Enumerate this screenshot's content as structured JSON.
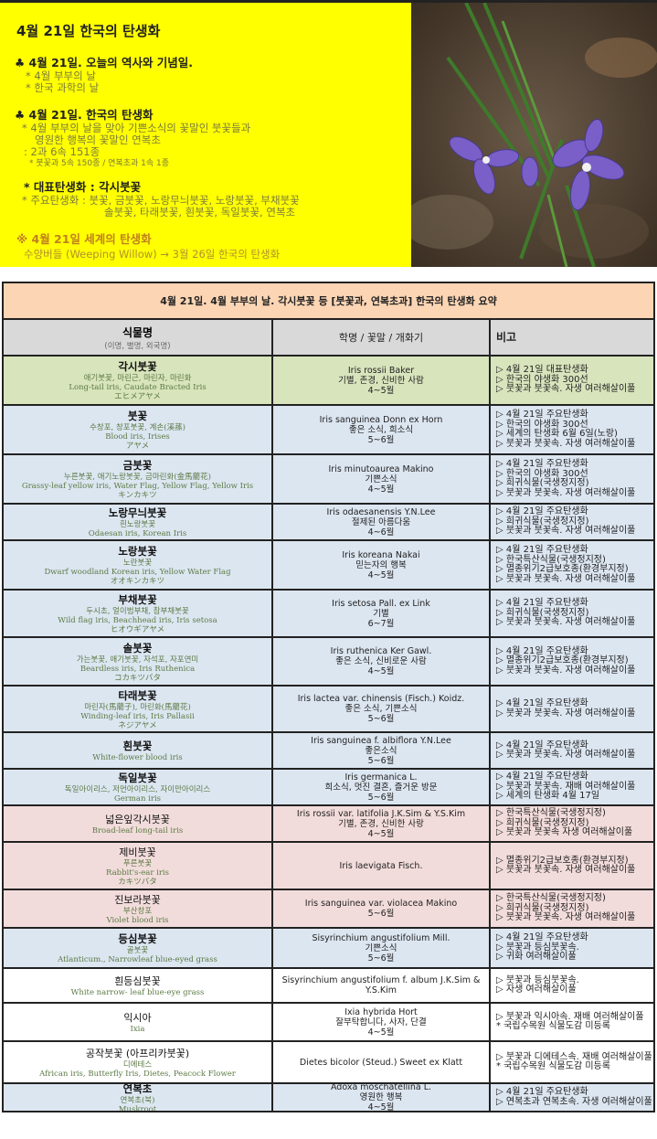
{
  "intro": {
    "title": "4월 21일 한국의 탄생화",
    "history_heading": "♣ 4월 21일. 오늘의 역사와 기념일.",
    "history_items": [
      "* 4월 부부의 날",
      "* 한국 과학의 날"
    ],
    "birth_heading": "♣ 4월 21일. 한국의 탄생화",
    "birth_lines": [
      "* 4월 부부의 날을 맞아 기쁜소식의 꽃말인 붓꽃들과",
      "영원한 행복의 꽃말인 연복초",
      ": 2과 6속 151종"
    ],
    "birth_small": "* 붓꽃과 5속 150종 / 연복초과 1속 1종",
    "rep_flower": "* 대표탄생화 : 각시붓꽃",
    "main_flowers_1": "* 주요탄생화 : 붓꽃, 금붓꽃, 노랑무늬붓꽃, 노랑붓꽃, 부채붓꽃",
    "main_flowers_2": "솔붓꽃, 타래붓꽃, 흰붓꽃, 독일붓꽃,  연복초",
    "world_heading": "※ 4월 21일 세계의 탄생화",
    "world_line": "수양버들 (Weeping Willow) → 3월 26일 한국의 탄생화"
  },
  "table": {
    "title": "4월 21일. 4월 부부의 날. 각시붓꽃 등 [붓꽃과, 연복초과] 한국의 탄생화 요약",
    "headers": {
      "name": "식물명",
      "name_sub": "(이명, 별명, 외국명)",
      "sci": "학명 / 꽃말 / 개화기",
      "note": "비고"
    },
    "colors": {
      "green": "#d8e4bc",
      "blue": "#dce6f1",
      "pink": "#f2dcdb",
      "white": "#ffffff",
      "title": "#fcd5b4",
      "header": "#d9d9d9"
    },
    "rows": [
      {
        "name": "각시붓꽃",
        "bold": true,
        "bg": "green",
        "sub": [
          "애기붓꽃, 마린근, 마린자, 마린화",
          "Long-tail iris, Caudate Bracted Iris",
          "エヒメアヤメ"
        ],
        "sci": [
          "Iris rossii Baker",
          "기별, 존경, 신비한 사람",
          "4~5월"
        ],
        "notes": [
          "▷ 4월 21일 대표탄생화",
          "▷ 한국의 야생화 300선",
          "▷ 붓꽃과 붓꽃속. 자생 여러해살이풀"
        ]
      },
      {
        "name": "붓꽃",
        "bold": true,
        "bg": "blue",
        "sub": [
          "수창포, 창포붓꽃, 계손(溪蓀)",
          "Blood iris, Irises",
          "アヤメ"
        ],
        "sci": [
          "Iris sanguinea Donn ex Horn",
          "좋은 소식, 희소식",
          "5~6월"
        ],
        "notes": [
          "▷ 4월 21일 주요탄생화",
          "▷ 한국의 야생화 300선",
          "▷ 세계의 탄생화 6월 6일(노랑)",
          "▷ 붓꽃과 붓꽃속. 자생 여러해살이풀"
        ]
      },
      {
        "name": "금붓꽃",
        "bold": true,
        "bg": "blue",
        "sub": [
          "누른붓꽃, 애기노랑붓꽃, 금마린화(金馬藺花)",
          "Grassy-leaf yellow iris, Water Flag, Yellow Flag, Yellow Iris",
          "キンカキツ"
        ],
        "sci": [
          "Iris minutoaurea Makino",
          "기쁜소식",
          "4~5월"
        ],
        "notes": [
          "▷ 4월 21일 주요탄생화",
          "▷ 한국의 야생화 300선",
          "▷ 희귀식물(국생정지정)",
          "▷ 붓꽃과 붓꽃속. 자생 여러해살이풀"
        ]
      },
      {
        "name": "노랑무늬붓꽃",
        "bold": true,
        "bg": "blue",
        "sub": [
          "흰노랑붓꽃",
          "Odaesan iris, Korean Iris"
        ],
        "sci": [
          "Iris odaesanensis Y.N.Lee",
          "절제된 아름다움",
          "4~6월"
        ],
        "notes": [
          "▷ 4월 21일 주요탄생화",
          "▷ 희귀식물(국생정지정)",
          "▷ 붓꽃과 붓꽃속. 자생 여러해살이풀"
        ]
      },
      {
        "name": "노랑붓꽃",
        "bold": true,
        "bg": "blue",
        "sub": [
          "노란붓꽃",
          "Dwarf woodland Korean iris, Yellow Water Flag",
          "オオキンカキツ"
        ],
        "sci": [
          "Iris koreana Nakai",
          "믿는자의 행복",
          "4~5월"
        ],
        "notes": [
          "▷ 4월 21일 주요탄생화",
          "▷ 한국특산식물(국생정지정)",
          "▷ 멸종위기2급보호종(환경부지정)",
          "▷ 붓꽃과 붓꽃속. 자생 여러해살이풀"
        ]
      },
      {
        "name": "부채붓꽃",
        "bold": true,
        "bg": "blue",
        "sub": [
          "두시초, 얼이범부채, 참부채붓꽃",
          "Wild flag iris, Beachhead iris, Iris setosa",
          "ヒオウギアヤメ"
        ],
        "sci": [
          "Iris setosa Pall. ex Link",
          "기별",
          "6~7월"
        ],
        "notes": [
          "▷ 4월 21일 주요탄생화",
          "▷ 희귀식물(국생정지정)",
          "▷ 붓꽃과 붓꽃속. 자생 여러해살이풀"
        ]
      },
      {
        "name": "솔붓꽃",
        "bold": true,
        "bg": "blue",
        "sub": [
          "가는붓꽃, 애기붓꽃, 자석포, 자포연미",
          "Beardless iris, Iris Ruthenica",
          "コカキツバタ"
        ],
        "sci": [
          "Iris ruthenica Ker Gawl.",
          "좋은 소식, 신비로운 사람",
          "4~5월"
        ],
        "notes": [
          "▷ 4월 21일 주요탄생화",
          "▷ 멸종위기2급보호종(환경부지정)",
          "▷ 붓꽃과 붓꽃속. 자생 여러해살이풀"
        ]
      },
      {
        "name": "타래붓꽃",
        "bold": true,
        "bg": "blue",
        "sub": [
          "마린자(馬藺子), 마린화(馬藺花)",
          "Winding-leaf iris, Iris Pallasii",
          "ネジアヤメ"
        ],
        "sci": [
          "Iris lactea var. chinensis (Fisch.) Koidz.",
          "좋은 소식, 기쁜소식",
          "5~6월"
        ],
        "notes": [
          "▷ 4월 21일 주요탄생화",
          "▷ 붓꽃과 붓꽃속. 자생 여러해살이풀"
        ]
      },
      {
        "name": "흰붓꽃",
        "bold": true,
        "bg": "blue",
        "sub": [
          "White-flower blood iris"
        ],
        "sci": [
          "Iris sanguinea f. albiflora Y.N.Lee",
          "좋은소식",
          "5~6월"
        ],
        "notes": [
          "▷ 4월 21일 주요탄생화",
          "▷ 붓꽃과 붓꽃속. 자생 여러해살이풀"
        ]
      },
      {
        "name": "독일붓꽃",
        "bold": true,
        "bg": "blue",
        "sub": [
          "독일아이리스, 저먼아이리스, 자이만아이리스",
          "German iris"
        ],
        "sci": [
          "Iris germanica L.",
          "희소식, 멋진 결혼, 즐거운 방문",
          "5~6월"
        ],
        "notes": [
          "▷ 4월 21일 주요탄생화",
          "▷ 붓꽃과 붓꽃속. 재배 여러해살이풀",
          "▷ 세계의 탄생화 4월 17일"
        ]
      },
      {
        "name": "넓은잎각시붓꽃",
        "bold": false,
        "bg": "pink",
        "sub": [
          "Broad-leaf long-tail iris"
        ],
        "sci": [
          "Iris rossii var. latifolia J.K.Sim & Y.S.Kim",
          "기별, 존경, 신비한 사랑",
          "4~5월"
        ],
        "notes": [
          "▷ 한국특산식물(국생정지정)",
          "▷ 희귀식물(국생정지정)",
          "▷ 붓꽃과 붓꽃속 자생 여러해살이풀"
        ]
      },
      {
        "name": "제비붓꽃",
        "bold": false,
        "bg": "pink",
        "sub": [
          "푸른붓꽃",
          "Rabbit's-ear iris",
          "カキツバタ"
        ],
        "sci": [
          "Iris laevigata Fisch."
        ],
        "notes": [
          "▷ 멸종위기2급보호종(환경부지정)",
          "▷ 붓꽃과 붓꽃속. 자생 여러해살이풀"
        ]
      },
      {
        "name": "진보라붓꽃",
        "bold": false,
        "bg": "pink",
        "sub": [
          "부산창포",
          "Violet blood iris"
        ],
        "sci": [
          "Iris sanguinea var. violacea Makino",
          "5~6월"
        ],
        "notes": [
          "▷ 한국특산식물(국생정지정)",
          "▷ 희귀식물(국생정지정)",
          "▷ 붓꽃과 붓꽃속. 자생 여러해살이풀"
        ]
      },
      {
        "name": "등심붓꽃",
        "bold": true,
        "bg": "blue",
        "sub": [
          "골붓꽃",
          "Atlanticum., Narrowleaf blue-eyed grass"
        ],
        "sci": [
          "Sisyrinchium angustifolium Mill.",
          "기쁜소식",
          "5~6월"
        ],
        "notes": [
          "▷ 4월 21일 주요탄생화",
          "▷ 붓꽃과 등심붓꽃속.",
          "▷ 귀화 여러해살이풀"
        ]
      },
      {
        "name": "흰등심붓꽃",
        "bold": false,
        "bg": "white",
        "sub": [
          "White narrow- leaf blue-eye grass"
        ],
        "sci": [
          "Sisyrinchium angustifolium f. album J.K.Sim &",
          "Y.S.Kim"
        ],
        "notes": [
          "▷ 붓꽃과 등심붓꽃속.",
          "▷ 자생 여러해살이풀"
        ]
      },
      {
        "name": "익시아",
        "bold": false,
        "bg": "white",
        "sub": [
          "Ixia"
        ],
        "sci": [
          "Ixia hybrida Hort",
          "잘부탁합니다, 사자, 단결",
          "4~5월"
        ],
        "notes": [
          "▷ 붓꽃과 익시아속. 재배 여러해살이풀",
          "* 국립수목원 식물도감 미등록"
        ]
      },
      {
        "name": "공작붓꽃 (아프리카붓꽃)",
        "bold": false,
        "bg": "white",
        "sub": [
          "디에테스",
          "African iris, Butterfly Iris, Dietes, Peacock Flower"
        ],
        "sci": [
          "Dietes bicolor (Steud.) Sweet ex Klatt"
        ],
        "notes": [
          "▷ 붓꽃과 디에테스속. 재배 여러해살이풀",
          "* 국립수목원 식물도감 미등록"
        ]
      },
      {
        "name": "연복초",
        "bold": true,
        "bg": "blue",
        "sub": [
          "연복초(북)",
          "Muskroot"
        ],
        "sci": [
          "Adoxa moschatellina L.",
          "영원한 행복",
          "4~5월"
        ],
        "notes": [
          "▷ 4월 21일 주요탄생화",
          "▷ 연복초과 연복초속. 자생 여러해살이풀"
        ]
      }
    ]
  }
}
